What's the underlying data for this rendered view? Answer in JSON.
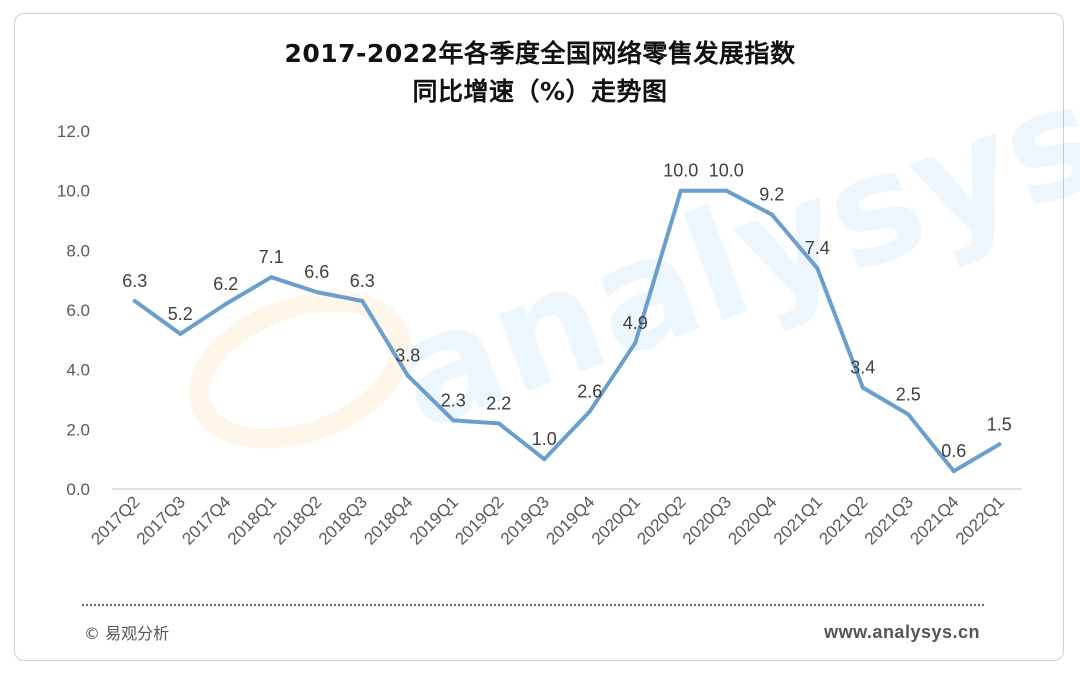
{
  "chart_data": {
    "type": "line",
    "title_line1": "2017-2022年各季度全国网络零售发展指数",
    "title_line2": "同比增速（%）走势图",
    "categories": [
      "2017Q2",
      "2017Q3",
      "2017Q4",
      "2018Q1",
      "2018Q2",
      "2018Q3",
      "2018Q4",
      "2019Q1",
      "2019Q2",
      "2019Q3",
      "2019Q4",
      "2020Q1",
      "2020Q2",
      "2020Q3",
      "2020Q4",
      "2021Q1",
      "2021Q2",
      "2021Q3",
      "2021Q4",
      "2022Q1"
    ],
    "values": [
      6.3,
      5.2,
      6.2,
      7.1,
      6.6,
      6.3,
      3.8,
      2.3,
      2.2,
      1.0,
      2.6,
      4.9,
      10.0,
      10.0,
      9.2,
      7.4,
      3.4,
      2.5,
      0.6,
      1.5
    ],
    "data_labels": [
      "6.3",
      "5.2",
      "6.2",
      "7.1",
      "6.6",
      "6.3",
      "3.8",
      "2.3",
      "2.2",
      "1.0",
      "2.6",
      "4.9",
      "10.0",
      "10.0",
      "9.2",
      "7.4",
      "3.4",
      "2.5",
      "0.6",
      "1.5"
    ],
    "yticks": [
      "0.0",
      "2.0",
      "4.0",
      "6.0",
      "8.0",
      "10.0",
      "12.0"
    ],
    "ylim": [
      0,
      12
    ],
    "grid": false,
    "line_color": "#6a9fcd",
    "xlabel": "",
    "ylabel": ""
  },
  "footer": {
    "copyright": "© 易观分析",
    "website": "www.analysys.cn"
  }
}
